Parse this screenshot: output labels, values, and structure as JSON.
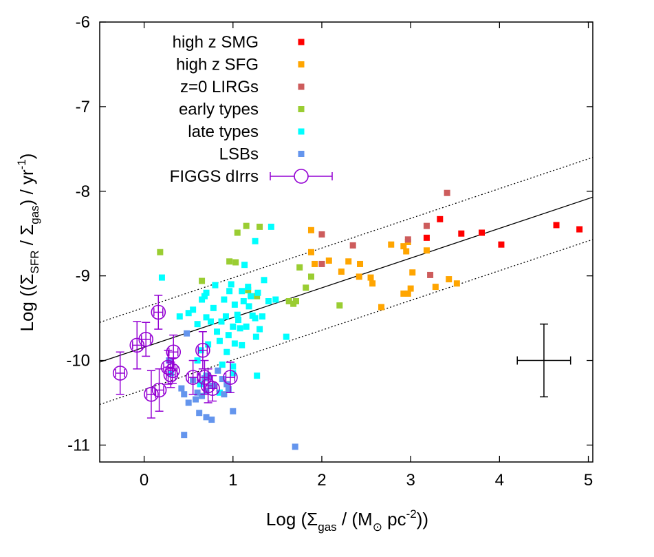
{
  "chart_data": {
    "type": "scatter",
    "xlabel_parts": [
      "Log  (Σ",
      "gas",
      " / (M",
      "⊙",
      " pc",
      "-2",
      "))"
    ],
    "ylabel_parts": [
      "Log ((Σ",
      "SFR",
      " / Σ",
      "gas",
      ") / yr",
      "-1",
      ")"
    ],
    "xlim": [
      -0.5,
      5.05
    ],
    "ylim": [
      -11.2,
      -6.0
    ],
    "xticks": [
      0,
      1,
      2,
      3,
      4,
      5
    ],
    "yticks": [
      -11,
      -10,
      -9,
      -8,
      -7,
      -6
    ],
    "xtick_labels": [
      "0",
      "1",
      "2",
      "3",
      "4",
      "5"
    ],
    "ytick_labels": [
      "-11",
      "-10",
      "-9",
      "-8",
      "-7",
      "-6"
    ],
    "grid": false,
    "legend_position": "top-left",
    "colors": {
      "high_z_smg": "#ff0000",
      "high_z_sfg": "#ffa500",
      "z0_lirgs": "#cd5c5c",
      "early_types": "#9acd32",
      "late_types": "#00ffff",
      "lsbs": "#6495ed",
      "figgs": "#9400d3",
      "lines": "#000000"
    },
    "series": [
      {
        "name": "high z SMG",
        "color_key": "high_z_smg",
        "marker": "square",
        "points": [
          [
            3.18,
            -8.55
          ],
          [
            3.33,
            -8.33
          ],
          [
            3.57,
            -8.5
          ],
          [
            3.8,
            -8.49
          ],
          [
            4.02,
            -8.63
          ],
          [
            4.64,
            -8.4
          ],
          [
            4.9,
            -8.45
          ]
        ]
      },
      {
        "name": "high z SFG",
        "color_key": "high_z_sfg",
        "marker": "square",
        "points": [
          [
            1.88,
            -8.46
          ],
          [
            1.88,
            -8.72
          ],
          [
            1.92,
            -8.86
          ],
          [
            2.08,
            -8.82
          ],
          [
            2.22,
            -8.95
          ],
          [
            2.3,
            -8.83
          ],
          [
            2.43,
            -8.86
          ],
          [
            2.42,
            -9.01
          ],
          [
            2.55,
            -9.02
          ],
          [
            2.57,
            -9.09
          ],
          [
            2.67,
            -9.37
          ],
          [
            2.78,
            -8.63
          ],
          [
            2.92,
            -8.65
          ],
          [
            2.95,
            -8.71
          ],
          [
            2.97,
            -8.6
          ],
          [
            2.92,
            -9.21
          ],
          [
            2.97,
            -9.21
          ],
          [
            3.0,
            -9.15
          ],
          [
            3.02,
            -8.96
          ],
          [
            3.18,
            -8.7
          ],
          [
            3.28,
            -9.13
          ],
          [
            3.43,
            -9.04
          ],
          [
            3.52,
            -9.09
          ]
        ]
      },
      {
        "name": "z=0 LIRGs",
        "color_key": "z0_lirgs",
        "marker": "square",
        "points": [
          [
            2.0,
            -8.51
          ],
          [
            2.0,
            -8.86
          ],
          [
            2.35,
            -8.64
          ],
          [
            2.97,
            -8.57
          ],
          [
            3.18,
            -8.41
          ],
          [
            3.22,
            -8.99
          ],
          [
            3.41,
            -8.02
          ]
        ]
      },
      {
        "name": "early types",
        "color_key": "early_types",
        "marker": "square",
        "points": [
          [
            0.18,
            -8.72
          ],
          [
            0.65,
            -9.06
          ],
          [
            0.96,
            -8.83
          ],
          [
            1.03,
            -8.84
          ],
          [
            1.05,
            -8.49
          ],
          [
            1.15,
            -8.41
          ],
          [
            1.17,
            -9.17
          ],
          [
            1.27,
            -9.24
          ],
          [
            1.3,
            -8.42
          ],
          [
            1.63,
            -9.3
          ],
          [
            1.68,
            -9.33
          ],
          [
            1.71,
            -9.3
          ],
          [
            1.75,
            -8.9
          ],
          [
            1.88,
            -9.01
          ],
          [
            1.82,
            -9.14
          ],
          [
            2.2,
            -9.35
          ]
        ]
      },
      {
        "name": "late types",
        "color_key": "late_types",
        "marker": "square",
        "points": [
          [
            0.2,
            -9.02
          ],
          [
            0.3,
            -10.15
          ],
          [
            0.4,
            -9.48
          ],
          [
            0.5,
            -9.44
          ],
          [
            0.55,
            -9.4
          ],
          [
            0.6,
            -9.57
          ],
          [
            0.63,
            -10.28
          ],
          [
            0.64,
            -9.88
          ],
          [
            0.65,
            -9.28
          ],
          [
            0.68,
            -9.24
          ],
          [
            0.7,
            -9.49
          ],
          [
            0.7,
            -9.2
          ],
          [
            0.72,
            -9.81
          ],
          [
            0.75,
            -9.54
          ],
          [
            0.78,
            -9.38
          ],
          [
            0.8,
            -9.11
          ],
          [
            0.82,
            -9.66
          ],
          [
            0.85,
            -9.77
          ],
          [
            0.87,
            -9.54
          ],
          [
            0.88,
            -10.05
          ],
          [
            0.9,
            -9.28
          ],
          [
            0.92,
            -9.48
          ],
          [
            0.93,
            -9.9
          ],
          [
            0.95,
            -9.7
          ],
          [
            0.96,
            -9.18
          ],
          [
            0.98,
            -9.1
          ],
          [
            1.0,
            -9.6
          ],
          [
            1.0,
            -10.07
          ],
          [
            1.02,
            -9.34
          ],
          [
            1.02,
            -9.8
          ],
          [
            1.05,
            -9.46
          ],
          [
            1.06,
            -9.52
          ],
          [
            1.08,
            -9.62
          ],
          [
            1.1,
            -9.82
          ],
          [
            1.1,
            -9.18
          ],
          [
            1.12,
            -9.3
          ],
          [
            1.13,
            -8.87
          ],
          [
            1.15,
            -9.6
          ],
          [
            1.17,
            -9.13
          ],
          [
            1.18,
            -9.36
          ],
          [
            1.2,
            -9.24
          ],
          [
            1.22,
            -9.47
          ],
          [
            1.25,
            -9.5
          ],
          [
            1.25,
            -8.59
          ],
          [
            1.26,
            -9.72
          ],
          [
            1.28,
            -9.2
          ],
          [
            1.3,
            -9.63
          ],
          [
            1.33,
            -9.48
          ],
          [
            1.35,
            -9.05
          ],
          [
            1.4,
            -9.3
          ],
          [
            1.43,
            -8.42
          ],
          [
            1.48,
            -9.28
          ],
          [
            1.6,
            -9.72
          ],
          [
            1.27,
            -10.18
          ],
          [
            1.0,
            -10.15
          ],
          [
            0.78,
            -10.3
          ],
          [
            0.7,
            -10.18
          ],
          [
            0.85,
            -10.38
          ],
          [
            0.6,
            -10.0
          ]
        ]
      },
      {
        "name": "LSBs",
        "color_key": "lsbs",
        "marker": "square",
        "points": [
          [
            0.28,
            -10.0
          ],
          [
            0.42,
            -10.33
          ],
          [
            0.45,
            -10.4
          ],
          [
            0.48,
            -9.68
          ],
          [
            0.5,
            -10.5
          ],
          [
            0.55,
            -10.23
          ],
          [
            0.58,
            -10.46
          ],
          [
            0.6,
            -10.38
          ],
          [
            0.62,
            -10.62
          ],
          [
            0.65,
            -10.42
          ],
          [
            0.68,
            -10.21
          ],
          [
            0.7,
            -10.36
          ],
          [
            0.7,
            -10.67
          ],
          [
            0.72,
            -10.18
          ],
          [
            0.75,
            -10.3
          ],
          [
            0.76,
            -10.7
          ],
          [
            0.78,
            -10.3
          ],
          [
            0.83,
            -10.12
          ],
          [
            0.88,
            -10.22
          ],
          [
            0.9,
            -10.4
          ],
          [
            0.93,
            -10.28
          ],
          [
            0.95,
            -10.34
          ],
          [
            1.0,
            -10.6
          ],
          [
            0.45,
            -10.88
          ],
          [
            1.7,
            -11.02
          ]
        ]
      }
    ],
    "errorbar_series": {
      "name": "FIGGS dIrrs",
      "color_key": "figgs",
      "marker": "open-circle",
      "points": [
        {
          "x": -0.27,
          "y": -10.15,
          "xerr": 0.05,
          "yerr": 0.25
        },
        {
          "x": -0.08,
          "y": -9.82,
          "xerr": 0.05,
          "yerr": 0.28
        },
        {
          "x": 0.02,
          "y": -9.75,
          "xerr": 0.05,
          "yerr": 0.2
        },
        {
          "x": 0.08,
          "y": -10.4,
          "xerr": 0.05,
          "yerr": 0.28
        },
        {
          "x": 0.16,
          "y": -9.43,
          "xerr": 0.05,
          "yerr": 0.2
        },
        {
          "x": 0.17,
          "y": -10.35,
          "xerr": 0.05,
          "yerr": 0.25
        },
        {
          "x": 0.27,
          "y": -10.08,
          "xerr": 0.05,
          "yerr": 0.2
        },
        {
          "x": 0.3,
          "y": -10.17,
          "xerr": 0.05,
          "yerr": 0.15
        },
        {
          "x": 0.32,
          "y": -10.12,
          "xerr": 0.05,
          "yerr": 0.15
        },
        {
          "x": 0.33,
          "y": -9.9,
          "xerr": 0.05,
          "yerr": 0.2
        },
        {
          "x": 0.55,
          "y": -10.2,
          "xerr": 0.05,
          "yerr": 0.2
        },
        {
          "x": 0.66,
          "y": -9.88,
          "xerr": 0.05,
          "yerr": 0.22
        },
        {
          "x": 0.68,
          "y": -10.2,
          "xerr": 0.05,
          "yerr": 0.2
        },
        {
          "x": 0.72,
          "y": -10.3,
          "xerr": 0.05,
          "yerr": 0.2
        },
        {
          "x": 0.77,
          "y": -10.33,
          "xerr": 0.05,
          "yerr": 0.15
        },
        {
          "x": 0.97,
          "y": -10.2,
          "xerr": 0.05,
          "yerr": 0.18
        }
      ]
    },
    "lines": [
      {
        "style": "solid",
        "x": [
          -0.5,
          5.05
        ],
        "y": [
          -10.02,
          -8.07
        ]
      },
      {
        "style": "dotted",
        "x": [
          -0.5,
          5.05
        ],
        "y": [
          -9.55,
          -7.6
        ]
      },
      {
        "style": "dotted",
        "x": [
          -0.5,
          5.05
        ],
        "y": [
          -10.52,
          -8.57
        ]
      }
    ],
    "typical_error": {
      "x": 4.5,
      "y": -10.0,
      "xerr": 0.3,
      "yerr": 0.43
    }
  }
}
